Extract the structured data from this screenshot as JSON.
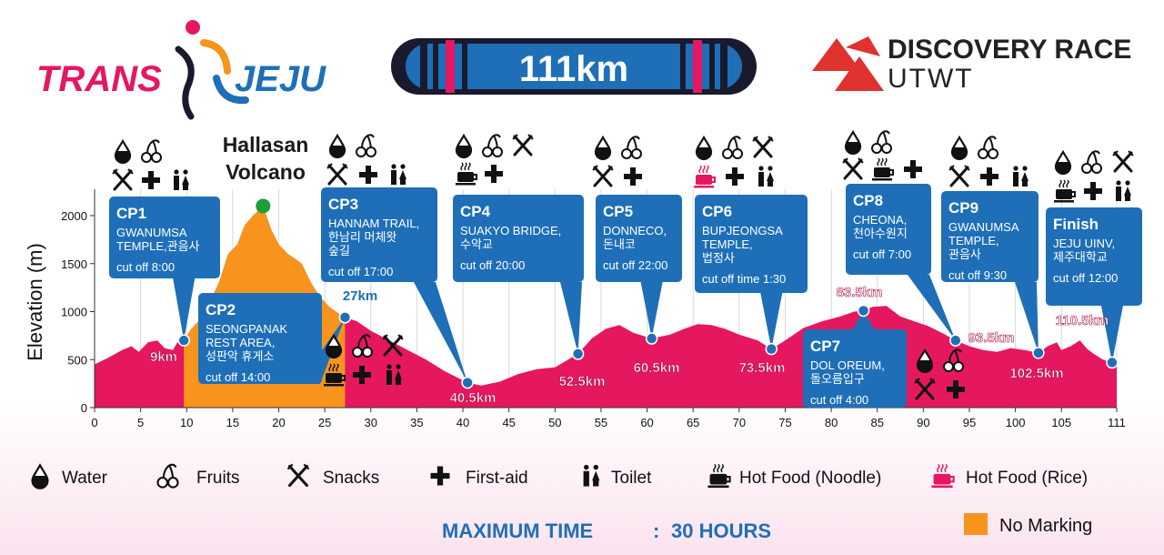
{
  "header": {
    "logo_left": {
      "trans": "TRANS",
      "jeju": "JEJU"
    },
    "distance": "111km",
    "logo_right": {
      "line1": "DISCOVERY RACE",
      "line2": "UTWT"
    }
  },
  "chart_data": {
    "type": "area",
    "ylabel": "Elevation (m)",
    "xlabel": "",
    "xlim": [
      0,
      111
    ],
    "ylim": [
      0,
      2250
    ],
    "x_ticks": [
      0,
      5,
      10,
      15,
      20,
      25,
      30,
      35,
      40,
      45,
      50,
      55,
      60,
      65,
      70,
      75,
      80,
      85,
      90,
      95,
      100,
      105,
      111
    ],
    "y_ticks": [
      0,
      500,
      1000,
      1500,
      2000
    ],
    "grid": "vertical",
    "fill_colors": {
      "profile": "#e5175f",
      "no_marking": "#f7941d"
    },
    "profile": [
      [
        0,
        450
      ],
      [
        1.5,
        520
      ],
      [
        3,
        600
      ],
      [
        4,
        640
      ],
      [
        4.8,
        580
      ],
      [
        5.8,
        680
      ],
      [
        6.8,
        700
      ],
      [
        7.6,
        620
      ],
      [
        8.5,
        600
      ],
      [
        9,
        680
      ],
      [
        9.7,
        700
      ],
      [
        10.5,
        820
      ],
      [
        11.5,
        920
      ],
      [
        12.5,
        1100
      ],
      [
        13.5,
        1300
      ],
      [
        14.5,
        1600
      ],
      [
        15.5,
        1700
      ],
      [
        16.3,
        1900
      ],
      [
        17.2,
        2000
      ],
      [
        18.3,
        2100
      ],
      [
        19.2,
        1850
      ],
      [
        20,
        1700
      ],
      [
        21,
        1600
      ],
      [
        21.8,
        1550
      ],
      [
        22.5,
        1500
      ],
      [
        23.5,
        1300
      ],
      [
        24.5,
        1150
      ],
      [
        25.5,
        1050
      ],
      [
        26.5,
        980
      ],
      [
        27.2,
        940
      ],
      [
        28.5,
        900
      ],
      [
        30,
        800
      ],
      [
        32,
        700
      ],
      [
        34,
        600
      ],
      [
        36,
        500
      ],
      [
        38,
        380
      ],
      [
        40.5,
        260
      ],
      [
        42,
        230
      ],
      [
        44,
        270
      ],
      [
        46,
        350
      ],
      [
        48,
        400
      ],
      [
        50,
        420
      ],
      [
        52.5,
        560
      ],
      [
        54,
        720
      ],
      [
        55.5,
        820
      ],
      [
        57,
        860
      ],
      [
        58.5,
        780
      ],
      [
        60.5,
        720
      ],
      [
        62.5,
        760
      ],
      [
        64,
        820
      ],
      [
        65.5,
        870
      ],
      [
        67,
        860
      ],
      [
        68.5,
        820
      ],
      [
        70,
        760
      ],
      [
        72,
        700
      ],
      [
        73.5,
        610
      ],
      [
        75,
        700
      ],
      [
        77,
        830
      ],
      [
        79,
        900
      ],
      [
        81,
        950
      ],
      [
        82.5,
        1000
      ],
      [
        83.5,
        1010
      ],
      [
        84.5,
        1050
      ],
      [
        86,
        1060
      ],
      [
        87.5,
        950
      ],
      [
        89,
        900
      ],
      [
        90.5,
        850
      ],
      [
        92,
        780
      ],
      [
        93.5,
        700
      ],
      [
        95,
        640
      ],
      [
        96.5,
        600
      ],
      [
        98,
        580
      ],
      [
        99.5,
        620
      ],
      [
        101,
        600
      ],
      [
        102.5,
        570
      ],
      [
        103.5,
        640
      ],
      [
        104.5,
        680
      ],
      [
        105,
        600
      ],
      [
        106,
        640
      ],
      [
        107,
        700
      ],
      [
        107.8,
        610
      ],
      [
        108.5,
        560
      ],
      [
        109.5,
        500
      ],
      [
        110.5,
        470
      ],
      [
        111,
        460
      ]
    ],
    "summit": {
      "x": 18.3,
      "y": 2100,
      "label": [
        "Hallasan",
        "Volcano"
      ]
    },
    "no_marking_range": [
      9.7,
      27.2
    ],
    "checkpoints": [
      {
        "name": "CP1",
        "km": 9.7,
        "elev": 700,
        "dist_label": "9km",
        "lines": [
          "GWANUMSA",
          "TEMPLE,관음사"
        ],
        "cutoff": "cut off 8:00",
        "icons": [
          [
            "water",
            "fruits"
          ],
          [
            "snacks",
            "first-aid",
            "toilet"
          ]
        ]
      },
      {
        "name": "CP2",
        "km": 27.2,
        "elev": 940,
        "dist_label": "27km",
        "lines": [
          "SEONGPANAK",
          "REST AREA,",
          "성판악 휴게소"
        ],
        "cutoff": "cut off 14:00",
        "icons": [
          [
            "water",
            "fruits",
            "snacks"
          ],
          [
            "hot-noodle",
            "first-aid",
            "toilet"
          ]
        ]
      },
      {
        "name": "CP3",
        "km": 40.5,
        "elev": 260,
        "dist_label": "40.5km",
        "lines": [
          "HANNAM TRAIL,",
          "한남리 머체왓",
          "숲길"
        ],
        "cutoff": "cut off 17:00",
        "icons": [
          [
            "water",
            "fruits"
          ],
          [
            "snacks",
            "first-aid",
            "toilet"
          ]
        ]
      },
      {
        "name": "CP4",
        "km": 52.5,
        "elev": 560,
        "dist_label": "52.5km",
        "lines": [
          "SUAKYO BRIDGE,",
          "수악교"
        ],
        "cutoff": "cut off 20:00",
        "icons": [
          [
            "water",
            "fruits",
            "snacks"
          ],
          [
            "hot-noodle",
            "first-aid"
          ]
        ]
      },
      {
        "name": "CP5",
        "km": 60.5,
        "elev": 720,
        "dist_label": "60.5km",
        "lines": [
          "DONNECO,",
          "돈내코"
        ],
        "cutoff": "cut off 22:00",
        "icons": [
          [
            "water",
            "fruits"
          ],
          [
            "snacks",
            "first-aid"
          ]
        ]
      },
      {
        "name": "CP6",
        "km": 73.5,
        "elev": 610,
        "dist_label": "73.5km",
        "lines": [
          "BUPJEONGSA",
          "TEMPLE,",
          "법정사"
        ],
        "cutoff": "cut off time 1:30",
        "icons": [
          [
            "water",
            "fruits",
            "snacks"
          ],
          [
            "hot-rice",
            "first-aid",
            "toilet"
          ]
        ]
      },
      {
        "name": "CP7",
        "km": 83.5,
        "elev": 1010,
        "dist_label": "83.5km",
        "lines": [
          "DOL OREUM,",
          "돌오름입구"
        ],
        "cutoff": "cut off 4:00",
        "icons": [
          [
            "water",
            "fruits"
          ],
          [
            "snacks",
            "first-aid"
          ]
        ]
      },
      {
        "name": "CP8",
        "km": 93.5,
        "elev": 700,
        "dist_label": "93.5km",
        "lines": [
          "CHEONA,",
          "천아수원지"
        ],
        "cutoff": "cut off 7:00",
        "icons": [
          [
            "water",
            "fruits"
          ],
          [
            "snacks",
            "hot-noodle",
            "first-aid"
          ]
        ]
      },
      {
        "name": "CP9",
        "km": 102.5,
        "elev": 570,
        "dist_label": "102.5km",
        "lines": [
          "GWANUMSA",
          "TEMPLE,",
          "관음사"
        ],
        "cutoff": "cut off 9:30",
        "icons": [
          [
            "water",
            "fruits"
          ],
          [
            "snacks",
            "first-aid",
            "toilet"
          ]
        ]
      },
      {
        "name": "Finish",
        "km": 110.5,
        "elev": 470,
        "dist_label": "110.5km",
        "lines": [
          "JEJU UINV,",
          "제주대학교"
        ],
        "cutoff": "cut off 12:00",
        "icons": [
          [
            "water",
            "fruits",
            "snacks"
          ],
          [
            "hot-noodle",
            "first-aid",
            "toilet"
          ]
        ]
      }
    ]
  },
  "legend": [
    {
      "icon": "water",
      "label": "Water"
    },
    {
      "icon": "fruits",
      "label": "Fruits"
    },
    {
      "icon": "snacks",
      "label": "Snacks"
    },
    {
      "icon": "first-aid",
      "label": "First-aid"
    },
    {
      "icon": "toilet",
      "label": "Toilet"
    },
    {
      "icon": "hot-noodle",
      "label": "Hot Food (Noodle)"
    },
    {
      "icon": "hot-rice",
      "label": "Hot Food (Rice)"
    }
  ],
  "footer": {
    "max_time_label": "MAXIMUM TIME",
    "separator": ":",
    "max_time_value": "30 HOURS",
    "no_marking_label": "No Marking"
  },
  "colors": {
    "pink": "#e5175f",
    "blue": "#1e6fb8",
    "orange": "#f7941d",
    "summit": "#1e9c3a",
    "red": "#e0322e",
    "navy": "#1a1a2e"
  }
}
